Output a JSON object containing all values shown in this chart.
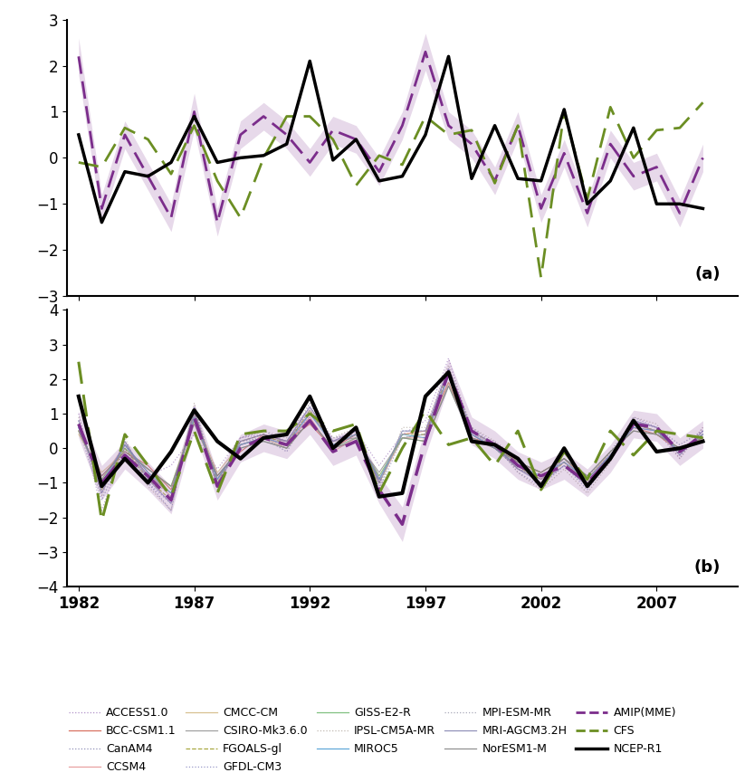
{
  "years": [
    1982,
    1983,
    1984,
    1985,
    1986,
    1987,
    1988,
    1989,
    1990,
    1991,
    1992,
    1993,
    1994,
    1995,
    1996,
    1997,
    1998,
    1999,
    2000,
    2001,
    2002,
    2003,
    2004,
    2005,
    2006,
    2007,
    2008,
    2009
  ],
  "panel_a": {
    "ncep_r1": [
      0.5,
      -1.4,
      -0.3,
      -0.4,
      -0.1,
      0.9,
      -0.1,
      0.0,
      0.05,
      0.3,
      2.1,
      -0.05,
      0.4,
      -0.5,
      -0.4,
      0.5,
      2.2,
      -0.45,
      0.7,
      -0.45,
      -0.5,
      1.05,
      -1.0,
      -0.5,
      0.65,
      -1.0,
      -1.0,
      -1.1
    ],
    "cfs": [
      -0.1,
      -0.2,
      0.65,
      0.4,
      -0.35,
      0.7,
      -0.5,
      -1.3,
      0.0,
      0.9,
      0.9,
      0.4,
      -0.6,
      0.05,
      -0.15,
      0.9,
      0.5,
      0.6,
      -0.55,
      0.7,
      -2.6,
      1.0,
      -0.9,
      1.1,
      0.0,
      0.6,
      0.65,
      1.2
    ],
    "amip_mme": [
      2.2,
      -1.1,
      0.5,
      -0.4,
      -1.3,
      1.0,
      -1.4,
      0.5,
      0.9,
      0.5,
      -0.1,
      0.6,
      0.4,
      -0.3,
      0.7,
      2.3,
      0.7,
      0.3,
      -0.5,
      0.7,
      -1.1,
      0.1,
      -1.2,
      0.3,
      -0.4,
      -0.2,
      -1.2,
      0.0
    ],
    "amip_spread": [
      0.4,
      0.3,
      0.3,
      0.3,
      0.3,
      0.4,
      0.3,
      0.3,
      0.3,
      0.3,
      0.3,
      0.3,
      0.3,
      0.3,
      0.3,
      0.4,
      0.3,
      0.3,
      0.3,
      0.3,
      0.3,
      0.3,
      0.3,
      0.3,
      0.3,
      0.3,
      0.3,
      0.3
    ],
    "ylim": [
      -3,
      3
    ],
    "yticks": [
      -3,
      -2,
      -1,
      0,
      1,
      2,
      3
    ],
    "label": "(a)"
  },
  "panel_b": {
    "ncep_r1": [
      1.5,
      -1.1,
      -0.3,
      -1.0,
      -0.1,
      1.1,
      0.2,
      -0.3,
      0.3,
      0.4,
      1.5,
      0.0,
      0.6,
      -1.4,
      -1.3,
      1.5,
      2.2,
      0.2,
      0.1,
      -0.3,
      -1.1,
      0.0,
      -1.1,
      -0.3,
      0.8,
      -0.1,
      -0.0,
      0.2
    ],
    "cfs": [
      2.5,
      -2.1,
      0.4,
      -0.5,
      -1.4,
      0.5,
      -1.3,
      0.4,
      0.5,
      0.5,
      1.0,
      0.5,
      0.7,
      -1.3,
      0.0,
      1.1,
      0.1,
      0.3,
      -0.5,
      0.5,
      -1.2,
      -0.1,
      -0.9,
      0.5,
      -0.2,
      0.5,
      0.4,
      0.3
    ],
    "amip_mme": [
      0.7,
      -1.0,
      -0.2,
      -0.8,
      -1.5,
      0.9,
      -1.1,
      0.0,
      0.3,
      0.1,
      0.8,
      -0.1,
      0.2,
      -1.2,
      -2.2,
      0.2,
      2.2,
      0.5,
      0.1,
      -0.5,
      -0.8,
      -0.5,
      -1.0,
      -0.3,
      0.7,
      0.6,
      -0.1,
      0.4
    ],
    "amip_spread": [
      0.4,
      0.5,
      0.4,
      0.4,
      0.4,
      0.4,
      0.4,
      0.4,
      0.4,
      0.4,
      0.4,
      0.4,
      0.4,
      0.4,
      0.5,
      0.4,
      0.4,
      0.4,
      0.4,
      0.4,
      0.4,
      0.4,
      0.4,
      0.4,
      0.4,
      0.4,
      0.4,
      0.4
    ],
    "ylim": [
      -4,
      4
    ],
    "yticks": [
      -4,
      -3,
      -2,
      -1,
      0,
      1,
      2,
      3,
      4
    ],
    "label": "(b)"
  },
  "individual_models": {
    "ACCESS1.0": {
      "color": "#B090C8",
      "style": "dotted",
      "lw": 0.9,
      "data": [
        1.0,
        -1.8,
        0.1,
        -0.8,
        -0.5,
        0.4,
        -0.6,
        0.3,
        0.4,
        0.0,
        1.3,
        0.2,
        0.5,
        -0.5,
        0.4,
        0.8,
        2.6,
        0.4,
        0.2,
        -0.3,
        -0.9,
        -0.3,
        -0.8,
        -0.2,
        0.7,
        0.5,
        -0.3,
        0.6
      ]
    },
    "BCC-CSM1.1": {
      "color": "#D87060",
      "style": "solid",
      "lw": 0.8,
      "data": [
        0.5,
        -0.8,
        -0.1,
        -0.5,
        -1.2,
        0.8,
        -0.8,
        -0.1,
        0.4,
        0.2,
        0.7,
        0.0,
        0.4,
        -0.9,
        0.4,
        0.5,
        1.9,
        0.3,
        0.1,
        -0.4,
        -0.7,
        -0.3,
        -0.9,
        -0.2,
        0.6,
        0.4,
        -0.1,
        0.3
      ]
    },
    "CanAM4": {
      "color": "#9090B8",
      "style": "dotted",
      "lw": 0.9,
      "data": [
        0.6,
        -1.5,
        0.0,
        -1.0,
        -1.8,
        1.2,
        -1.0,
        0.2,
        0.3,
        -0.1,
        1.0,
        0.3,
        0.4,
        -1.2,
        0.3,
        0.4,
        2.3,
        0.5,
        0.0,
        -0.6,
        -0.8,
        -0.4,
        -1.1,
        -0.1,
        0.8,
        0.6,
        0.1,
        0.5
      ]
    },
    "CCSM4": {
      "color": "#E8A0A0",
      "style": "solid",
      "lw": 0.8,
      "data": [
        0.5,
        -0.9,
        0.1,
        -0.7,
        -1.4,
        1.0,
        -0.9,
        0.1,
        0.3,
        0.1,
        0.9,
        -0.1,
        0.3,
        -1.0,
        0.3,
        0.3,
        2.1,
        0.4,
        -0.0,
        -0.5,
        -0.9,
        -0.4,
        -1.0,
        -0.2,
        0.6,
        0.5,
        -0.1,
        0.4
      ]
    },
    "CMCC-CM": {
      "color": "#D8C090",
      "style": "solid",
      "lw": 0.8,
      "data": [
        0.4,
        -0.7,
        -0.1,
        -0.6,
        -1.1,
        0.9,
        -0.7,
        0.1,
        0.3,
        0.0,
        0.8,
        0.0,
        0.2,
        -0.8,
        0.3,
        0.2,
        1.9,
        0.3,
        0.0,
        -0.5,
        -0.7,
        -0.3,
        -0.9,
        -0.1,
        0.5,
        0.4,
        -0.0,
        0.3
      ]
    },
    "CSIRO-Mk3.6.0": {
      "color": "#A0A0A0",
      "style": "solid",
      "lw": 0.8,
      "data": [
        0.6,
        -1.1,
        0.1,
        -0.8,
        -1.3,
        1.0,
        -0.9,
        0.1,
        0.3,
        0.2,
        1.0,
        0.2,
        0.3,
        -0.9,
        0.3,
        0.4,
        2.1,
        0.4,
        0.0,
        -0.6,
        -0.9,
        -0.3,
        -1.0,
        -0.2,
        0.7,
        0.5,
        -0.1,
        0.4
      ]
    },
    "FGOALS-gl": {
      "color": "#A8A840",
      "style": "dashed",
      "lw": 0.8,
      "data": [
        0.7,
        -1.2,
        0.0,
        -0.9,
        -1.5,
        1.1,
        -1.0,
        0.2,
        0.4,
        0.1,
        1.1,
        0.1,
        0.4,
        -1.0,
        0.4,
        0.4,
        2.2,
        0.5,
        0.1,
        -0.5,
        -1.0,
        -0.4,
        -1.1,
        -0.3,
        0.7,
        0.5,
        -0.1,
        0.4
      ]
    },
    "GFDL-CM3": {
      "color": "#9898C8",
      "style": "dotted",
      "lw": 0.9,
      "data": [
        0.8,
        -1.3,
        0.2,
        -1.0,
        -1.6,
        1.2,
        -1.1,
        0.3,
        0.5,
        0.2,
        1.2,
        0.2,
        0.5,
        -1.1,
        0.5,
        0.5,
        2.3,
        0.6,
        0.1,
        -0.7,
        -1.1,
        -0.5,
        -1.2,
        -0.3,
        0.9,
        0.6,
        -0.2,
        0.5
      ]
    },
    "GISS-E2-R": {
      "color": "#80C080",
      "style": "solid",
      "lw": 0.8,
      "data": [
        0.5,
        -0.9,
        0.0,
        -0.6,
        -1.1,
        0.8,
        -0.8,
        0.0,
        0.2,
        0.0,
        0.8,
        -0.0,
        0.3,
        -0.8,
        0.3,
        0.2,
        1.8,
        0.3,
        -0.0,
        -0.4,
        -0.7,
        -0.3,
        -0.8,
        -0.1,
        0.5,
        0.4,
        -0.0,
        0.3
      ]
    },
    "IPSL-CM5A-MR": {
      "color": "#C0B8B0",
      "style": "dotted",
      "lw": 0.9,
      "data": [
        0.9,
        -1.4,
        0.3,
        -1.1,
        -1.8,
        1.3,
        -1.2,
        0.3,
        0.5,
        0.3,
        1.3,
        0.3,
        0.6,
        -1.2,
        0.6,
        0.6,
        2.4,
        0.6,
        0.2,
        -0.7,
        -1.2,
        -0.6,
        -1.3,
        -0.4,
        0.9,
        0.7,
        -0.3,
        0.6
      ]
    },
    "MIROC5": {
      "color": "#60A8D8",
      "style": "solid",
      "lw": 0.8,
      "data": [
        0.6,
        -1.0,
        0.1,
        -0.7,
        -1.3,
        0.9,
        -0.9,
        0.1,
        0.3,
        0.1,
        1.0,
        0.1,
        0.4,
        -0.9,
        0.4,
        0.3,
        2.1,
        0.4,
        0.0,
        -0.5,
        -0.8,
        -0.4,
        -0.9,
        -0.2,
        0.6,
        0.5,
        -0.1,
        0.4
      ]
    },
    "MPI-ESM-MR": {
      "color": "#A8A8B8",
      "style": "dotted",
      "lw": 0.9,
      "data": [
        0.7,
        -1.1,
        0.1,
        -0.8,
        -1.4,
        1.0,
        -1.0,
        0.2,
        0.4,
        0.2,
        1.1,
        0.2,
        0.4,
        -1.0,
        0.4,
        0.4,
        2.2,
        0.4,
        0.1,
        -0.6,
        -0.9,
        -0.4,
        -1.0,
        -0.3,
        0.7,
        0.5,
        -0.2,
        0.4
      ]
    },
    "MRI-AGCM3.2H": {
      "color": "#9090B8",
      "style": "solid",
      "lw": 0.8,
      "data": [
        0.8,
        -1.3,
        0.2,
        -0.9,
        -1.6,
        1.1,
        -1.1,
        0.2,
        0.4,
        0.2,
        1.2,
        0.2,
        0.5,
        -1.0,
        0.5,
        0.5,
        2.3,
        0.5,
        0.1,
        -0.6,
        -1.0,
        -0.5,
        -1.1,
        -0.3,
        0.8,
        0.6,
        -0.2,
        0.5
      ]
    },
    "NorESM1-M": {
      "color": "#909090",
      "style": "solid",
      "lw": 0.8,
      "data": [
        0.5,
        -0.8,
        -0.1,
        -0.6,
        -1.1,
        0.7,
        -0.8,
        0.0,
        0.2,
        0.0,
        0.8,
        0.0,
        0.2,
        -0.7,
        0.3,
        0.2,
        1.8,
        0.3,
        0.0,
        -0.4,
        -0.7,
        -0.3,
        -0.8,
        -0.1,
        0.5,
        0.4,
        -0.0,
        0.3
      ]
    }
  },
  "xticks": [
    1982,
    1987,
    1992,
    1997,
    2002,
    2007
  ],
  "xlim": [
    1981.5,
    2010.5
  ],
  "colors": {
    "ncep_r1": "#000000",
    "cfs": "#6B8E23",
    "amip_mme": "#7B2D8B"
  },
  "legend_rows": [
    [
      [
        "ACCESS1.0",
        "dotted",
        "#B090C8"
      ],
      [
        "BCC-CSM1.1",
        "solid",
        "#D87060"
      ],
      [
        "CanAM4",
        "dotted",
        "#9090B8"
      ],
      [
        "CCSM4",
        "solid",
        "#E8A0A0"
      ],
      [
        "CMCC-CM",
        "solid",
        "#D8C090"
      ]
    ],
    [
      [
        "CSIRO-Mk3.6.0",
        "solid",
        "#A0A0A0"
      ],
      [
        "FGOALS-gl",
        "dashed",
        "#A8A840"
      ],
      [
        "GFDL-CM3",
        "dotted",
        "#9898C8"
      ],
      [
        "GISS-E2-R",
        "solid",
        "#80C080"
      ],
      [
        "IPSL-CM5A-MR",
        "dotted",
        "#C0B8B0"
      ]
    ],
    [
      [
        "MIROC5",
        "solid",
        "#60A8D8"
      ],
      [
        "MPI-ESM-MR",
        "dotted",
        "#A8A8B8"
      ],
      [
        "MRI-AGCM3.2H",
        "solid",
        "#9090B8"
      ],
      [
        "NorESM1-M",
        "solid",
        "#909090"
      ],
      [
        "AMIP(MME)",
        "dashed",
        "#7B2D8B"
      ]
    ],
    [
      [
        "CFS",
        "dashed",
        "#6B8E23"
      ],
      [
        "NCEP-R1",
        "solid",
        "#000000"
      ]
    ]
  ]
}
